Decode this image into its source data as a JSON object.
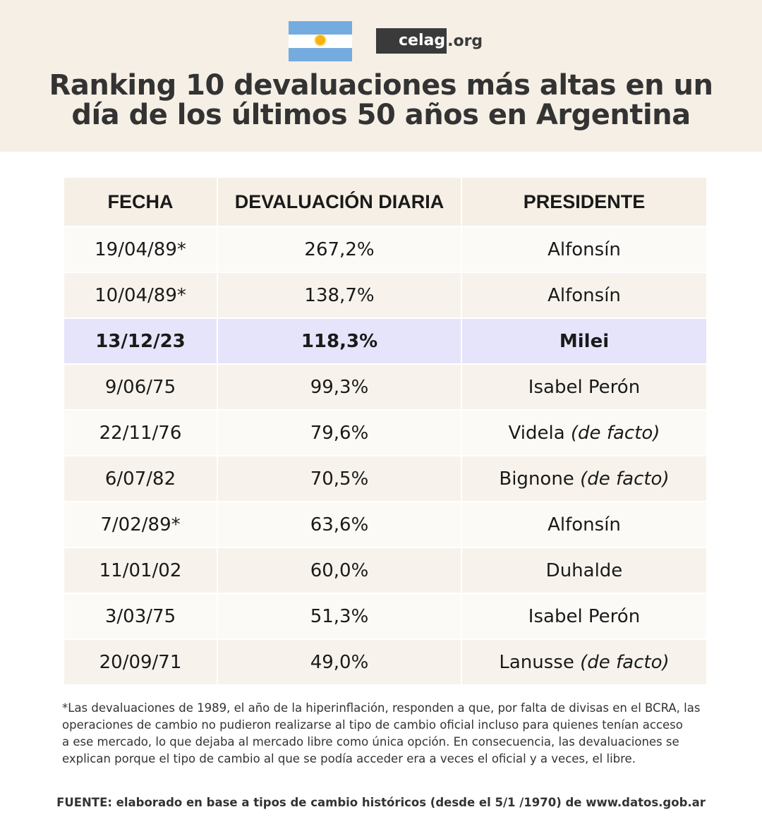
{
  "header": {
    "flag": "argentina-flag-icon",
    "logo": {
      "name": "celag",
      "tld": ".org"
    },
    "title_line1": "Ranking 10 devaluaciones más altas en un",
    "title_line2": "día de los últimos 50 años en Argentina"
  },
  "table": {
    "columns": [
      "FECHA",
      "DEVALUACIÓN DIARIA",
      "PRESIDENTE"
    ],
    "rows": [
      {
        "fecha": "19/04/89*",
        "devaluacion": "267,2%",
        "presidente": "Alfonsín",
        "nota": ""
      },
      {
        "fecha": "10/04/89*",
        "devaluacion": "138,7%",
        "presidente": "Alfonsín",
        "nota": ""
      },
      {
        "fecha": "13/12/23",
        "devaluacion": "118,3%",
        "presidente": "Milei",
        "nota": ""
      },
      {
        "fecha": "9/06/75",
        "devaluacion": "99,3%",
        "presidente": "Isabel Perón",
        "nota": ""
      },
      {
        "fecha": "22/11/76",
        "devaluacion": "79,6%",
        "presidente": "Videla",
        "nota": "(de facto)"
      },
      {
        "fecha": "6/07/82",
        "devaluacion": "70,5%",
        "presidente": "Bignone",
        "nota": "(de facto)"
      },
      {
        "fecha": "7/02/89*",
        "devaluacion": "63,6%",
        "presidente": "Alfonsín",
        "nota": ""
      },
      {
        "fecha": "11/01/02",
        "devaluacion": "60,0%",
        "presidente": "Duhalde",
        "nota": ""
      },
      {
        "fecha": "3/03/75",
        "devaluacion": "51,3%",
        "presidente": "Isabel Perón",
        "nota": ""
      },
      {
        "fecha": "20/09/71",
        "devaluacion": "49,0%",
        "presidente": "Lanusse",
        "nota": "(de facto)"
      }
    ],
    "highlight_color": "#e6e4fa"
  },
  "footnote": {
    "line1": "*Las devaluaciones de 1989, el año de la hiperinflación, responden a que, por falta de divisas en el BCRA, las",
    "line2": "operaciones de cambio no pudieron realizarse al tipo de cambio oficial incluso para quienes tenían acceso",
    "line3": "a ese mercado, lo que dejaba al mercado libre como única opción. En consecuencia, las devaluaciones se",
    "line4": "explican porque el tipo de cambio al que se podía acceder era a veces el oficial y a veces, el libre."
  },
  "source": "FUENTE: elaborado en base a tipos de cambio históricos (desde el 5/1 /1970) de www.datos.gob.ar"
}
